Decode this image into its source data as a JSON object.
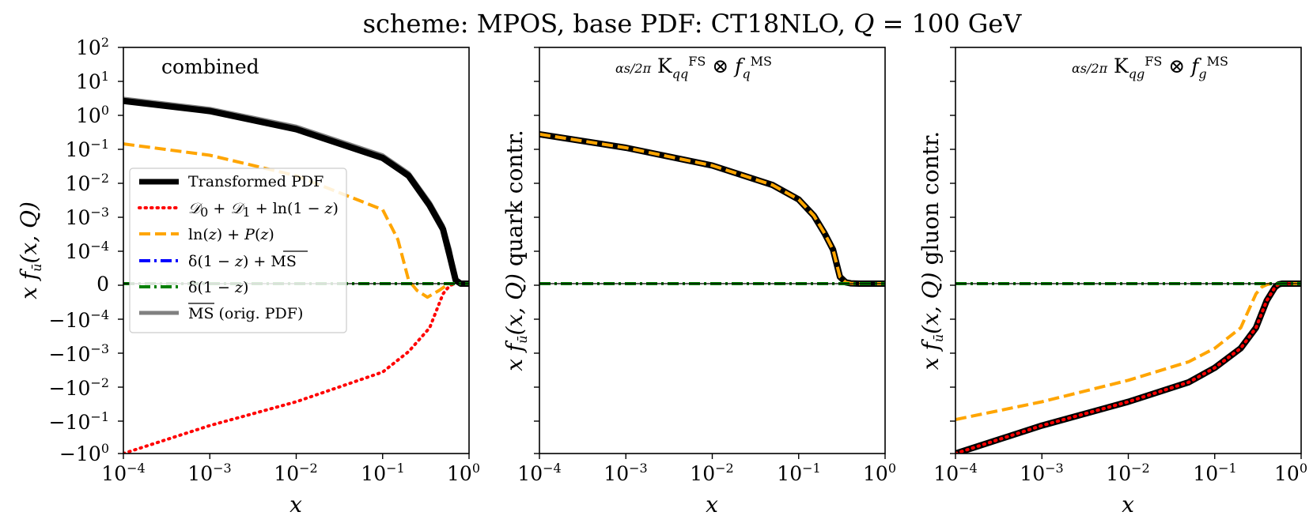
{
  "chart_data": {
    "type": "line",
    "title": "scheme: MPOS, base PDF: CT18NLO, Q = 100 GeV",
    "yscale": "symlog",
    "xscale": "log",
    "xlim": [
      0.0001,
      1
    ],
    "colors": {
      "transformed": "#000000",
      "singular": "#ff0000",
      "lnP": "#ffa500",
      "deltaMS": "#0000ff",
      "delta": "#008000",
      "orig": "#808080"
    },
    "panels": [
      {
        "annotation": "combined",
        "xlabel": "x",
        "ylabel": "x f_ū(x, Q)",
        "x_ticks": [
          "10^-4",
          "10^-3",
          "10^-2",
          "10^-1",
          "10^0"
        ],
        "y_ticks": [
          "10^2",
          "10^1",
          "10^0",
          "10^-1",
          "10^-2",
          "10^-3",
          "10^-4",
          "0",
          "-10^-4",
          "-10^-3",
          "-10^-2",
          "-10^-1",
          "-10^0"
        ],
        "series": [
          {
            "name": "Transformed PDF",
            "x": [
              0.0001,
              0.001,
              0.01,
              0.1,
              0.2,
              0.35,
              0.5,
              0.6,
              0.7,
              0.8,
              1.0
            ],
            "y": [
              2.4,
              1.2,
              0.35,
              0.05,
              0.015,
              0.002,
              0.0004,
              8e-05,
              1e-05,
              0,
              0
            ]
          },
          {
            "name": "D0 + D1 + ln(1-z)",
            "x": [
              0.0001,
              0.001,
              0.01,
              0.1,
              0.2,
              0.35,
              0.5,
              0.6,
              0.7
            ],
            "y": [
              -1.0,
              -0.15,
              -0.03,
              -0.004,
              -0.001,
              -0.0002,
              -3e-05,
              -5e-06,
              0
            ]
          },
          {
            "name": "ln(z) + P(z)",
            "x": [
              0.0001,
              0.001,
              0.01,
              0.1,
              0.15,
              0.2,
              0.25,
              0.33,
              0.45,
              0.55,
              0.6
            ],
            "y": [
              0.13,
              0.06,
              0.015,
              0.0015,
              0.0002,
              1e-05,
              -2e-05,
              -4e-05,
              -2e-05,
              -5e-06,
              0
            ]
          },
          {
            "name": "δ(1-z) + MS",
            "x": [
              0.0001,
              1.0
            ],
            "y": [
              0,
              0
            ]
          },
          {
            "name": "δ(1-z)",
            "x": [
              0.0001,
              1.0
            ],
            "y": [
              0,
              0
            ]
          },
          {
            "name": "MS (orig. PDF)",
            "x": [
              0.0001,
              0.001,
              0.01,
              0.1,
              0.2,
              0.35,
              0.5,
              0.6,
              0.7,
              0.8,
              1.0
            ],
            "y": [
              2.8,
              1.4,
              0.42,
              0.06,
              0.018,
              0.0025,
              0.0005,
              0.0001,
              1e-05,
              0,
              0
            ]
          }
        ]
      },
      {
        "annotation": "αs/2π K^FS_qq ⊗ f_q^MS",
        "xlabel": "x",
        "ylabel": "x f_ū(x, Q) quark contr.",
        "x_ticks": [
          "10^-4",
          "10^-3",
          "10^-2",
          "10^-1",
          "10^0"
        ],
        "series": [
          {
            "name": "Transformed PDF",
            "x": [
              0.0001,
              0.001,
              0.01,
              0.05,
              0.1,
              0.15,
              0.2,
              0.25,
              0.3,
              0.35,
              0.4,
              0.5,
              0.6,
              1.0
            ],
            "y": [
              0.25,
              0.1,
              0.03,
              0.008,
              0.003,
              0.001,
              0.0003,
              0.0001,
              2e-05,
              4e-06,
              1e-06,
              0,
              0,
              0
            ]
          },
          {
            "name": "ln(z) + P(z)",
            "x": [
              0.0001,
              0.001,
              0.01,
              0.05,
              0.1,
              0.15,
              0.2,
              0.25,
              0.3,
              0.35,
              0.4,
              0.5,
              0.6,
              1.0
            ],
            "y": [
              0.25,
              0.1,
              0.03,
              0.008,
              0.003,
              0.001,
              0.0003,
              0.0001,
              2e-05,
              4e-06,
              1e-06,
              0,
              0,
              0
            ]
          },
          {
            "name": "δ(1-z) + MS",
            "x": [
              0.0001,
              1.0
            ],
            "y": [
              0,
              0
            ]
          },
          {
            "name": "δ(1-z)",
            "x": [
              0.0001,
              1.0
            ],
            "y": [
              0,
              0
            ]
          }
        ]
      },
      {
        "annotation": "αs/2π K^FS_qg ⊗ f_g^MS",
        "xlabel": "x",
        "ylabel": "x f_ū(x, Q) gluon contr.",
        "x_ticks": [
          "10^-4",
          "10^-3",
          "10^-2",
          "10^-1",
          "10^0"
        ],
        "series": [
          {
            "name": "Transformed PDF",
            "x": [
              0.0001,
              0.001,
              0.01,
              0.05,
              0.1,
              0.2,
              0.3,
              0.4,
              0.5,
              0.55,
              0.6,
              0.8,
              1.0
            ],
            "y": [
              -1.0,
              -0.15,
              -0.03,
              -0.008,
              -0.003,
              -0.0008,
              -0.0002,
              -5e-05,
              -1e-05,
              -2e-06,
              0,
              0,
              0
            ]
          },
          {
            "name": "D0 + D1 + ln(1-z)",
            "x": [
              0.0001,
              0.001,
              0.01,
              0.05,
              0.1,
              0.2,
              0.3,
              0.4,
              0.5,
              0.55,
              0.6,
              0.8,
              1.0
            ],
            "y": [
              -1.0,
              -0.15,
              -0.03,
              -0.008,
              -0.003,
              -0.0008,
              -0.0002,
              -5e-05,
              -1e-05,
              -2e-06,
              0,
              0,
              0
            ]
          },
          {
            "name": "ln(z) + P(z)",
            "x": [
              0.0001,
              0.001,
              0.01,
              0.05,
              0.1,
              0.2,
              0.3,
              0.35,
              0.4,
              0.45,
              0.5,
              1.0
            ],
            "y": [
              -0.1,
              -0.03,
              -0.007,
              -0.002,
              -0.0008,
              -0.0002,
              -3e-05,
              -1e-05,
              -3e-06,
              0,
              0,
              0
            ]
          },
          {
            "name": "δ(1-z) + MS",
            "x": [
              0.0001,
              1.0
            ],
            "y": [
              0,
              0
            ]
          },
          {
            "name": "δ(1-z)",
            "x": [
              0.0001,
              1.0
            ],
            "y": [
              0,
              0
            ]
          }
        ]
      }
    ],
    "legend": {
      "panel": 0,
      "placement": "center-left",
      "entries": [
        "Transformed PDF",
        "D0 + D1 + ln(1 − z)",
        "ln(z) + P(z)",
        "δ(1 − z) + MS",
        "δ(1 − z)",
        "MS (orig. PDF)"
      ]
    }
  }
}
